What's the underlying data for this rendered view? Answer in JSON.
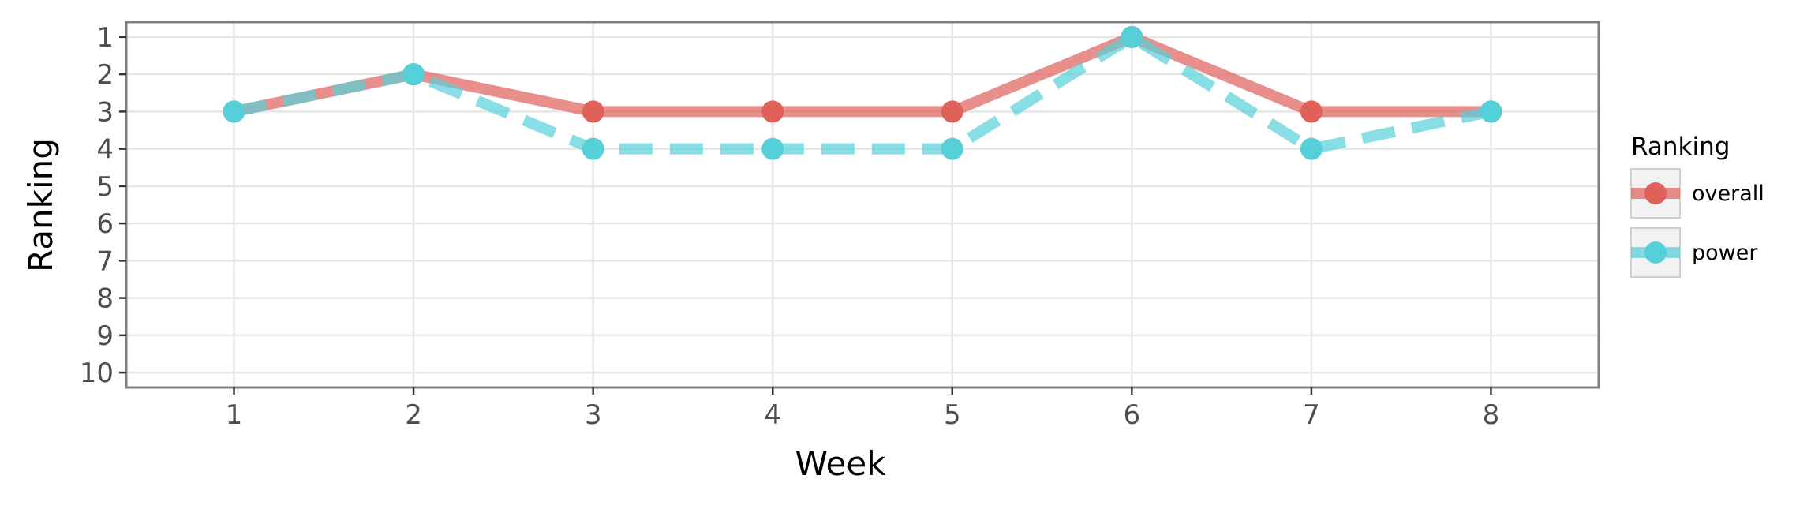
{
  "chart_data": {
    "type": "line",
    "x": [
      1,
      2,
      3,
      4,
      5,
      6,
      7,
      8
    ],
    "xlabel": "Week",
    "ylabel": "Ranking",
    "xlim": [
      0.4,
      8.6
    ],
    "ylim": [
      10.4,
      0.6
    ],
    "y_reversed": true,
    "x_ticks": [
      "1",
      "2",
      "3",
      "4",
      "5",
      "6",
      "7",
      "8"
    ],
    "y_ticks": [
      "1",
      "2",
      "3",
      "4",
      "5",
      "6",
      "7",
      "8",
      "9",
      "10"
    ],
    "grid": true,
    "legend": {
      "title": "Ranking",
      "position": "right"
    },
    "series": [
      {
        "name": "overall",
        "values": [
          3,
          2,
          3,
          3,
          3,
          1,
          3,
          3
        ],
        "color": "#e0605a",
        "line_style": "solid"
      },
      {
        "name": "power",
        "values": [
          3,
          2,
          4,
          4,
          4,
          1,
          4,
          3
        ],
        "color": "#56d0d8",
        "line_style": "dashed"
      }
    ]
  }
}
